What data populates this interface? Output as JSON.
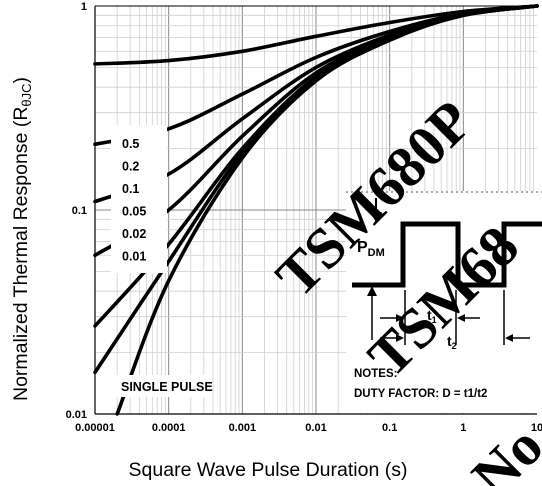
{
  "chart_data": {
    "type": "line",
    "xlabel": "Square Wave Pulse Duration (s)",
    "ylabel_main": "Normalized Thermal Response (R",
    "ylabel_sub": "θJC",
    "ylabel_close": ")",
    "x_scale": "log",
    "y_scale": "log",
    "xlim": [
      1e-05,
      10
    ],
    "ylim": [
      0.01,
      1
    ],
    "grid": true,
    "x_ticks": [
      {
        "v": 1e-05,
        "label": "0.00001"
      },
      {
        "v": 0.0001,
        "label": "0.0001"
      },
      {
        "v": 0.001,
        "label": "0.001"
      },
      {
        "v": 0.01,
        "label": "0.01"
      },
      {
        "v": 0.1,
        "label": "0.1"
      },
      {
        "v": 1,
        "label": "1"
      },
      {
        "v": 10,
        "label": "10"
      }
    ],
    "y_ticks": [
      {
        "v": 0.01,
        "label": "0.01"
      },
      {
        "v": 0.1,
        "label": "0.1"
      },
      {
        "v": 1,
        "label": "1"
      }
    ],
    "legend": [
      "0.5",
      "0.2",
      "0.1",
      "0.05",
      "0.02",
      "0.01"
    ],
    "single_pulse_label": "SINGLE PULSE",
    "series": [
      {
        "name": "0.5",
        "x": [
          1e-05,
          0.0001,
          0.001,
          0.01,
          0.1,
          1,
          10
        ],
        "y": [
          0.52,
          0.54,
          0.6,
          0.71,
          0.83,
          0.94,
          1.0
        ]
      },
      {
        "name": "0.2",
        "x": [
          1e-05,
          0.0001,
          0.001,
          0.01,
          0.1,
          1,
          10
        ],
        "y": [
          0.21,
          0.25,
          0.37,
          0.56,
          0.75,
          0.92,
          1.0
        ]
      },
      {
        "name": "0.1",
        "x": [
          1e-05,
          0.0001,
          0.001,
          0.01,
          0.1,
          1,
          10
        ],
        "y": [
          0.11,
          0.15,
          0.28,
          0.5,
          0.72,
          0.91,
          1.0
        ]
      },
      {
        "name": "0.05",
        "x": [
          1e-05,
          0.0001,
          0.001,
          0.01,
          0.1,
          1,
          10
        ],
        "y": [
          0.06,
          0.1,
          0.23,
          0.47,
          0.7,
          0.9,
          1.0
        ]
      },
      {
        "name": "0.02",
        "x": [
          1e-05,
          0.0001,
          0.001,
          0.01,
          0.1,
          1,
          10
        ],
        "y": [
          0.027,
          0.068,
          0.2,
          0.45,
          0.69,
          0.9,
          1.0
        ]
      },
      {
        "name": "0.01",
        "x": [
          1e-05,
          0.0001,
          0.001,
          0.01,
          0.1,
          1,
          10
        ],
        "y": [
          0.016,
          0.056,
          0.19,
          0.44,
          0.69,
          0.9,
          1.0
        ]
      },
      {
        "name": "SINGLE PULSE",
        "x": [
          2e-05,
          0.0001,
          0.001,
          0.01,
          0.1,
          1,
          10
        ],
        "y": [
          0.01,
          0.045,
          0.18,
          0.43,
          0.68,
          0.9,
          1.0
        ]
      }
    ],
    "inset": {
      "pdm_main": "P",
      "pdm_sub": "DM",
      "t1_main": "t",
      "t1_sub": "1",
      "t2_main": "t",
      "t2_sub": "2",
      "notes_title": "NOTES:",
      "notes_duty": "DUTY FACTOR: D = t1/t2"
    },
    "watermark": [
      "TSM680P",
      "TSM68",
      "No"
    ]
  }
}
